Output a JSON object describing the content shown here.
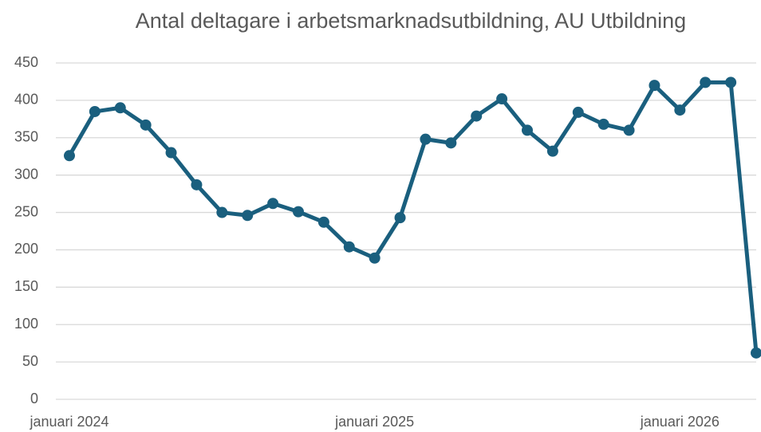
{
  "chart_data": {
    "type": "line",
    "title": "Antal deltagare i arbetsmarknadsutbildning, AU Utbildning",
    "categories": [
      "januari 2024",
      null,
      null,
      null,
      null,
      null,
      null,
      null,
      null,
      null,
      null,
      null,
      "januari 2025",
      null,
      null,
      null,
      null,
      null,
      null,
      null,
      null,
      null,
      null,
      null,
      "januari 2026",
      null,
      null,
      null
    ],
    "series": [
      {
        "name": "AU Utbildning",
        "color": "#1a5f7e",
        "values": [
          326,
          385,
          390,
          367,
          330,
          287,
          250,
          246,
          262,
          251,
          237,
          204,
          189,
          243,
          348,
          343,
          379,
          402,
          360,
          332,
          384,
          368,
          360,
          420,
          387,
          424,
          424,
          62
        ]
      }
    ],
    "ylim": [
      0,
      450
    ],
    "yticks": [
      0,
      50,
      100,
      150,
      200,
      250,
      300,
      350,
      400,
      450
    ],
    "grid": true
  }
}
